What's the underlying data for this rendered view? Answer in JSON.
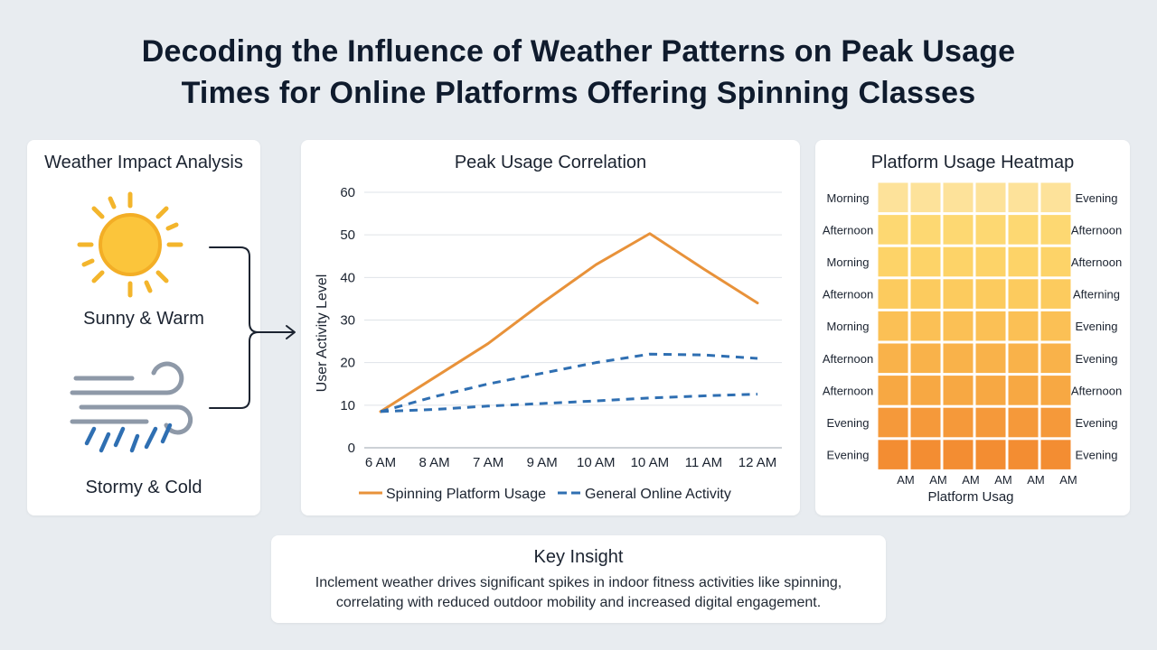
{
  "title": {
    "line1": "Decoding the Influence of Weather Patterns on Peak Usage",
    "line2": "Times for Online Platforms Offering Spinning Classes"
  },
  "weather": {
    "title": "Weather Impact Analysis",
    "items": [
      {
        "label": "Sunny & Warm",
        "icon": "sun-icon"
      },
      {
        "label": "Stormy & Cold",
        "icon": "storm-icon"
      }
    ]
  },
  "chart_data": {
    "type": "line",
    "title": "Peak Usage Correlation",
    "ylabel": "User Activity Level",
    "xlabel": "",
    "categories": [
      "6 AM",
      "8 AM",
      "7 AM",
      "9 AM",
      "10 AM",
      "10 AM",
      "11 AM",
      "12 AM"
    ],
    "ylim": [
      0,
      60
    ],
    "yticks": [
      0,
      10,
      20,
      30,
      40,
      50,
      60
    ],
    "grid": true,
    "legend_position": "bottom",
    "series": [
      {
        "name": "Spinning Platform Usage",
        "color": "#e8923a",
        "style": "solid",
        "values": [
          8.5,
          16.5,
          24.5,
          34,
          43,
          50.3,
          42,
          34
        ]
      },
      {
        "name": "General Online Activity",
        "color": "#2f6fb2",
        "style": "dashed",
        "values": [
          8.5,
          12,
          15,
          17.5,
          20,
          22,
          21.8,
          21
        ]
      },
      {
        "name": "",
        "color": "#2f6fb2",
        "style": "dashed",
        "values": [
          8.5,
          9,
          9.8,
          10.4,
          11,
          11.7,
          12.2,
          12.6
        ]
      }
    ]
  },
  "heatmap": {
    "title": "Platform Usage Heatmap",
    "left_labels": [
      "Morning",
      "Afternoon",
      "Morning",
      "Afternoon",
      "Morning",
      "Afternoon",
      "Afternoon",
      "Evening",
      "Evening"
    ],
    "right_labels": [
      "Evening",
      "Afternoon",
      "Afternoon",
      "Afterning",
      "Evening",
      "Evening",
      "Afternoon",
      "Evening",
      "Evening"
    ],
    "bottom_labels": [
      "AM",
      "AM",
      "AM",
      "AM",
      "AM",
      "AM"
    ],
    "xlabel": "Platform Usag",
    "row_colors": [
      "#fde29a",
      "#fdd872",
      "#fdd368",
      "#fccb5e",
      "#fbc055",
      "#f9b24a",
      "#f7a843",
      "#f5993a",
      "#f38d32"
    ]
  },
  "insight": {
    "title": "Key Insight",
    "line1": "Inclement weather drives significant spikes in indoor fitness activities like spinning,",
    "line2": "correlating with reduced outdoor mobility and increased digital engagement."
  }
}
